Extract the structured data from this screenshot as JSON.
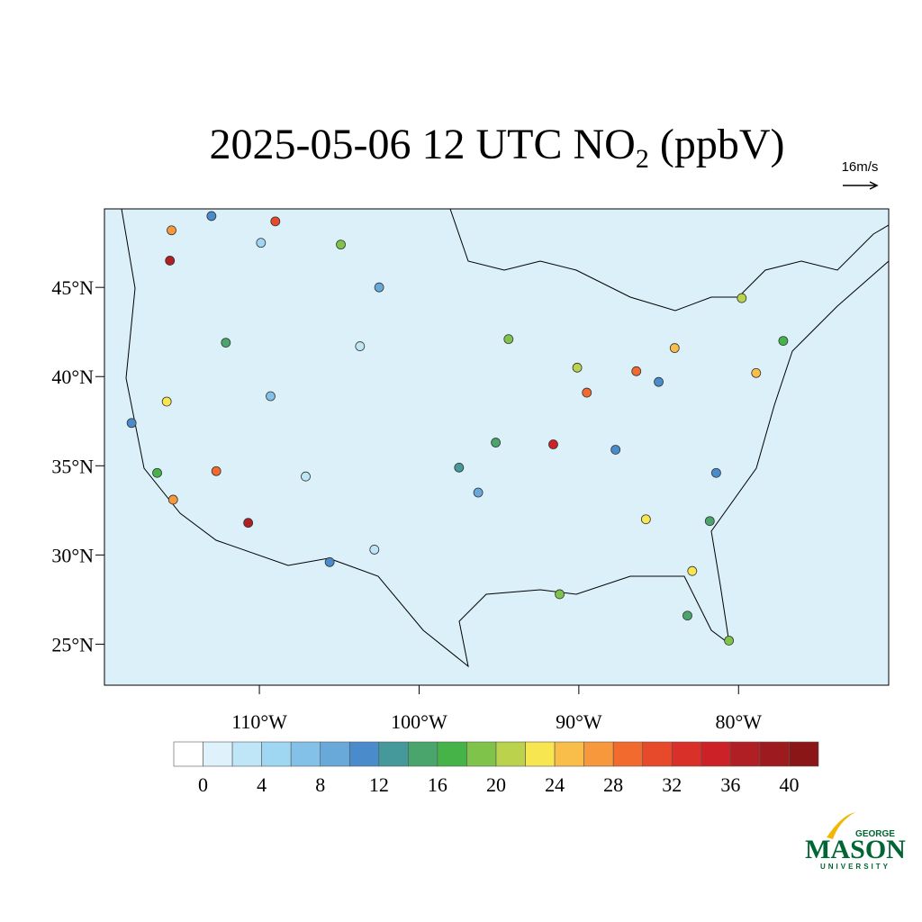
{
  "chart_data": {
    "type": "station-map",
    "title": {
      "main": "2025-05-06 12 UTC NO",
      "sub": "2",
      "unit": " (ppbV)"
    },
    "vector_reference": "16m/s",
    "xlim": [
      -119.7,
      -70.6
    ],
    "ylim": [
      22.7,
      49.4
    ],
    "xticks": [
      {
        "value": -110,
        "label": "110°W"
      },
      {
        "value": -100,
        "label": "100°W"
      },
      {
        "value": -90,
        "label": "90°W"
      },
      {
        "value": -80,
        "label": "80°W"
      }
    ],
    "yticks": [
      {
        "value": 45,
        "label": "45°N"
      },
      {
        "value": 40,
        "label": "40°N"
      },
      {
        "value": 35,
        "label": "35°N"
      },
      {
        "value": 30,
        "label": "30°N"
      },
      {
        "value": 25,
        "label": "25°N"
      }
    ],
    "map_color": "#dcf0fa",
    "colorbar": {
      "lim": [
        -2,
        42
      ],
      "levels": [
        0,
        2,
        4,
        6,
        8,
        10,
        12,
        14,
        16,
        18,
        20,
        22,
        24,
        26,
        28,
        30,
        32,
        34,
        36,
        38,
        40
      ],
      "ticks": [
        0,
        4,
        8,
        12,
        16,
        20,
        24,
        28,
        32,
        36,
        40
      ],
      "colors": [
        "#ffffff",
        "#dff1fb",
        "#bfe6f7",
        "#9fd7f3",
        "#84c1e8",
        "#69a9da",
        "#4a8ccb",
        "#45999a",
        "#4aa56c",
        "#45b348",
        "#80c34b",
        "#bad24c",
        "#f7e64f",
        "#f8be49",
        "#f7983d",
        "#f26a2d",
        "#e64a2a",
        "#d93029",
        "#cc2127",
        "#b01f24",
        "#9d1b1e",
        "#8a1618"
      ]
    },
    "stations": {
      "lon": [
        -115.5,
        -115.6,
        -109.0,
        -110.7,
        -112.7,
        -91.6,
        -89.5,
        -86.4,
        -84.0,
        -78.9,
        -115.8,
        -116.4,
        -118.0,
        -115.4,
        -112.1,
        -104.9,
        -95.2,
        -96.3,
        -87.7,
        -85.8,
        -82.9,
        -83.2,
        -80.6,
        -79.8,
        -94.4,
        -102.5,
        -103.7,
        -109.3,
        -107.1,
        -105.6,
        -102.8,
        -91.2,
        -81.8,
        -77.2,
        -81.4,
        -90.1,
        -97.5,
        -113.0,
        -109.9,
        -85.0
      ],
      "lat": [
        48.2,
        46.5,
        48.7,
        31.8,
        34.7,
        36.2,
        39.1,
        40.3,
        41.6,
        40.2,
        38.6,
        34.6,
        37.4,
        33.1,
        41.9,
        47.4,
        36.3,
        33.5,
        35.9,
        32.0,
        29.1,
        26.6,
        25.2,
        44.4,
        42.1,
        45.0,
        41.7,
        38.9,
        34.4,
        29.6,
        30.3,
        27.8,
        31.9,
        42.0,
        34.6,
        40.5,
        34.9,
        49.0,
        47.5,
        39.7
      ],
      "values": [
        27,
        36,
        30,
        36,
        28,
        34,
        28,
        28,
        24,
        24,
        22,
        16,
        10,
        26,
        14,
        18,
        14,
        8,
        10,
        22,
        22,
        14,
        18,
        20,
        18,
        8,
        2,
        6,
        2,
        10,
        2,
        18,
        14,
        16,
        10,
        20,
        12,
        10,
        4,
        10
      ]
    }
  },
  "logo": {
    "top": "GEORGE",
    "main": "MASON",
    "bottom": "UNIVERSITY"
  }
}
